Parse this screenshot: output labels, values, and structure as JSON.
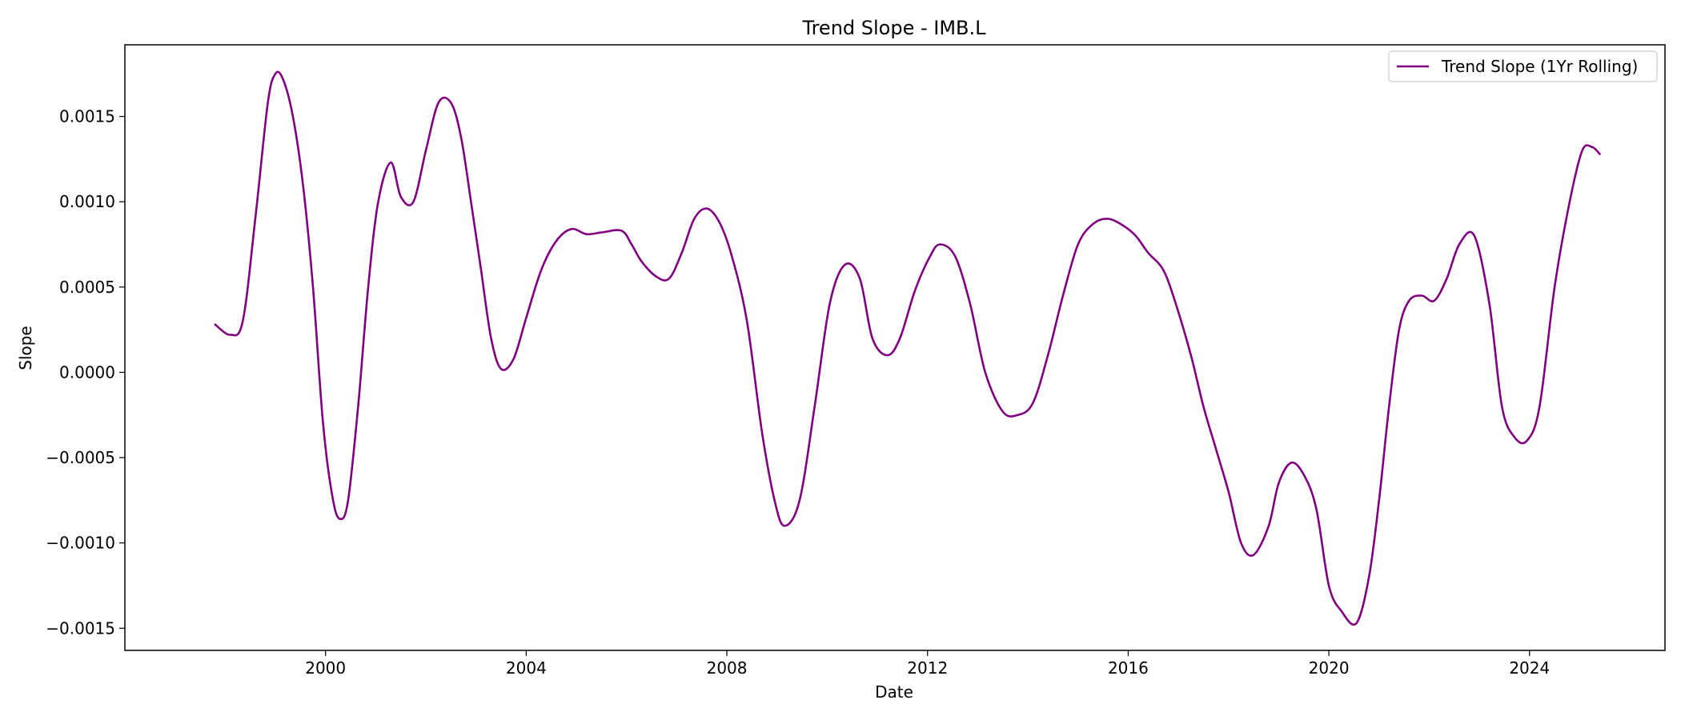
{
  "chart_data": {
    "type": "line",
    "title": "Trend Slope - IMB.L",
    "xlabel": "Date",
    "ylabel": "Slope",
    "xlim": [
      1996.0,
      2026.7
    ],
    "ylim": [
      -0.00163,
      0.00192
    ],
    "x_ticks": [
      2000,
      2004,
      2008,
      2012,
      2016,
      2020,
      2024
    ],
    "x_tick_labels": [
      "2000",
      "2004",
      "2008",
      "2012",
      "2016",
      "2020",
      "2024"
    ],
    "y_ticks": [
      -0.0015,
      -0.001,
      -0.0005,
      0.0,
      0.0005,
      0.001,
      0.0015
    ],
    "y_tick_labels": [
      "−0.0015",
      "−0.0010",
      "−0.0005",
      "0.0000",
      "0.0005",
      "0.0010",
      "0.0015"
    ],
    "grid": false,
    "legend_position": "top-right",
    "series": [
      {
        "name": "Trend Slope (1Yr Rolling)",
        "color": "#800080",
        "x": [
          1997.8,
          1998.1,
          1998.35,
          1998.6,
          1998.85,
          1999.0,
          1999.15,
          1999.35,
          1999.55,
          1999.75,
          1999.95,
          2000.15,
          2000.3,
          2000.45,
          2000.65,
          2000.85,
          2001.05,
          2001.3,
          2001.5,
          2001.75,
          2002.0,
          2002.25,
          2002.5,
          2002.7,
          2002.9,
          2003.1,
          2003.3,
          2003.5,
          2003.75,
          2004.0,
          2004.3,
          2004.6,
          2004.9,
          2005.2,
          2005.5,
          2005.9,
          2006.1,
          2006.3,
          2006.6,
          2006.85,
          2007.1,
          2007.35,
          2007.6,
          2007.85,
          2008.1,
          2008.4,
          2008.7,
          2008.95,
          2009.15,
          2009.45,
          2009.75,
          2010.05,
          2010.35,
          2010.65,
          2010.9,
          2011.2,
          2011.45,
          2011.75,
          2012.05,
          2012.25,
          2012.55,
          2012.85,
          2013.15,
          2013.5,
          2013.8,
          2014.1,
          2014.4,
          2014.7,
          2015.0,
          2015.3,
          2015.6,
          2015.9,
          2016.15,
          2016.4,
          2016.7,
          2016.95,
          2017.25,
          2017.5,
          2017.75,
          2018.0,
          2018.25,
          2018.5,
          2018.8,
          2019.0,
          2019.25,
          2019.5,
          2019.75,
          2020.0,
          2020.25,
          2020.55,
          2020.8,
          2021.0,
          2021.2,
          2021.4,
          2021.6,
          2021.85,
          2022.1,
          2022.35,
          2022.6,
          2022.9,
          2023.2,
          2023.45,
          2023.7,
          2023.95,
          2024.2,
          2024.5,
          2024.8,
          2025.05,
          2025.25,
          2025.4
        ],
        "y": [
          0.00028,
          0.00022,
          0.0003,
          0.0009,
          0.00158,
          0.00175,
          0.00172,
          0.0015,
          0.0011,
          0.0005,
          -0.0003,
          -0.00075,
          -0.00086,
          -0.00075,
          -0.0002,
          0.0005,
          0.001,
          0.00123,
          0.00103,
          0.001,
          0.0013,
          0.00158,
          0.00158,
          0.00138,
          0.001,
          0.0006,
          0.0002,
          2e-05,
          8e-05,
          0.00032,
          0.0006,
          0.00077,
          0.00084,
          0.00081,
          0.00082,
          0.00083,
          0.00075,
          0.00065,
          0.00056,
          0.00055,
          0.0007,
          0.0009,
          0.00096,
          0.00088,
          0.00068,
          0.0003,
          -0.00035,
          -0.00075,
          -0.0009,
          -0.00075,
          -0.0002,
          0.0004,
          0.00063,
          0.00055,
          0.0002,
          0.0001,
          0.0002,
          0.00048,
          0.00068,
          0.00075,
          0.00068,
          0.0004,
          0.0,
          -0.00023,
          -0.00025,
          -0.00018,
          0.0001,
          0.00045,
          0.00075,
          0.00087,
          0.0009,
          0.00086,
          0.0008,
          0.0007,
          0.0006,
          0.0004,
          0.0001,
          -0.0002,
          -0.00045,
          -0.0007,
          -0.001,
          -0.00107,
          -0.0009,
          -0.00065,
          -0.00053,
          -0.0006,
          -0.0008,
          -0.00125,
          -0.0014,
          -0.00147,
          -0.0012,
          -0.00075,
          -0.0002,
          0.00025,
          0.00042,
          0.00045,
          0.00042,
          0.00055,
          0.00075,
          0.0008,
          0.0004,
          -0.0002,
          -0.00038,
          -0.0004,
          -0.0002,
          0.0005,
          0.001,
          0.0013,
          0.00132,
          0.00128
        ]
      }
    ]
  }
}
